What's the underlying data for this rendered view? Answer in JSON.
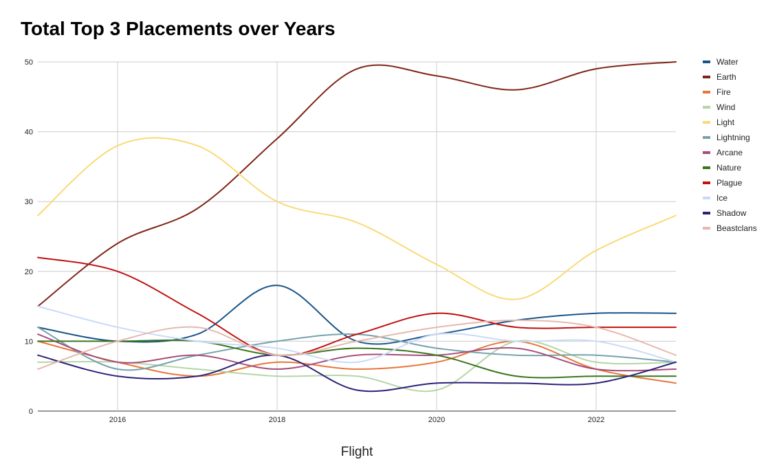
{
  "chart_data": {
    "type": "line",
    "title": "Total Top 3 Placements over Years",
    "xlabel": "Flight",
    "ylabel": "",
    "xlim": [
      2015,
      2023
    ],
    "ylim": [
      0,
      50
    ],
    "x": [
      2015,
      2016,
      2017,
      2018,
      2019,
      2020,
      2021,
      2022,
      2023
    ],
    "x_ticks": [
      "2016",
      "2018",
      "2020",
      "2022"
    ],
    "x_tick_values": [
      2016,
      2018,
      2020,
      2022
    ],
    "y_ticks": [
      "0",
      "10",
      "20",
      "30",
      "40",
      "50"
    ],
    "y_tick_values": [
      0,
      10,
      20,
      30,
      40,
      50
    ],
    "grid": true,
    "legend_position": "right",
    "series": [
      {
        "name": "Water",
        "color": "#1a5489",
        "values": [
          12,
          10,
          11,
          18,
          10,
          11,
          13,
          14,
          14
        ]
      },
      {
        "name": "Earth",
        "color": "#7f2416",
        "values": [
          15,
          24,
          29,
          39,
          49,
          48,
          46,
          49,
          50
        ]
      },
      {
        "name": "Fire",
        "color": "#e8763a",
        "values": [
          10,
          7,
          5,
          7,
          6,
          7,
          10,
          6,
          4
        ]
      },
      {
        "name": "Wind",
        "color": "#b5d5a6",
        "values": [
          7,
          7,
          6,
          5,
          5,
          3,
          10,
          7,
          7
        ]
      },
      {
        "name": "Light",
        "color": "#f9da77",
        "values": [
          28,
          38,
          38,
          30,
          27,
          21,
          16,
          23,
          28
        ]
      },
      {
        "name": "Lightning",
        "color": "#76a2ad",
        "values": [
          12,
          6,
          8,
          10,
          11,
          9,
          8,
          8,
          7
        ]
      },
      {
        "name": "Arcane",
        "color": "#a64d79",
        "values": [
          11,
          7,
          8,
          6,
          8,
          8,
          9,
          6,
          6
        ]
      },
      {
        "name": "Nature",
        "color": "#38761d",
        "values": [
          10,
          10,
          10,
          8,
          9,
          8,
          5,
          5,
          5
        ]
      },
      {
        "name": "Plague",
        "color": "#c0100f",
        "values": [
          22,
          20,
          14,
          8,
          11,
          14,
          12,
          12,
          12
        ]
      },
      {
        "name": "Ice",
        "color": "#c9daf8",
        "values": [
          15,
          12,
          10,
          9,
          7,
          11,
          10,
          10,
          7
        ]
      },
      {
        "name": "Shadow",
        "color": "#2b2178",
        "values": [
          8,
          5,
          5,
          8,
          3,
          4,
          4,
          4,
          7
        ]
      },
      {
        "name": "Beastclans",
        "color": "#e6b8af",
        "values": [
          6,
          10,
          12,
          8,
          10,
          12,
          13,
          12,
          8
        ]
      }
    ]
  }
}
